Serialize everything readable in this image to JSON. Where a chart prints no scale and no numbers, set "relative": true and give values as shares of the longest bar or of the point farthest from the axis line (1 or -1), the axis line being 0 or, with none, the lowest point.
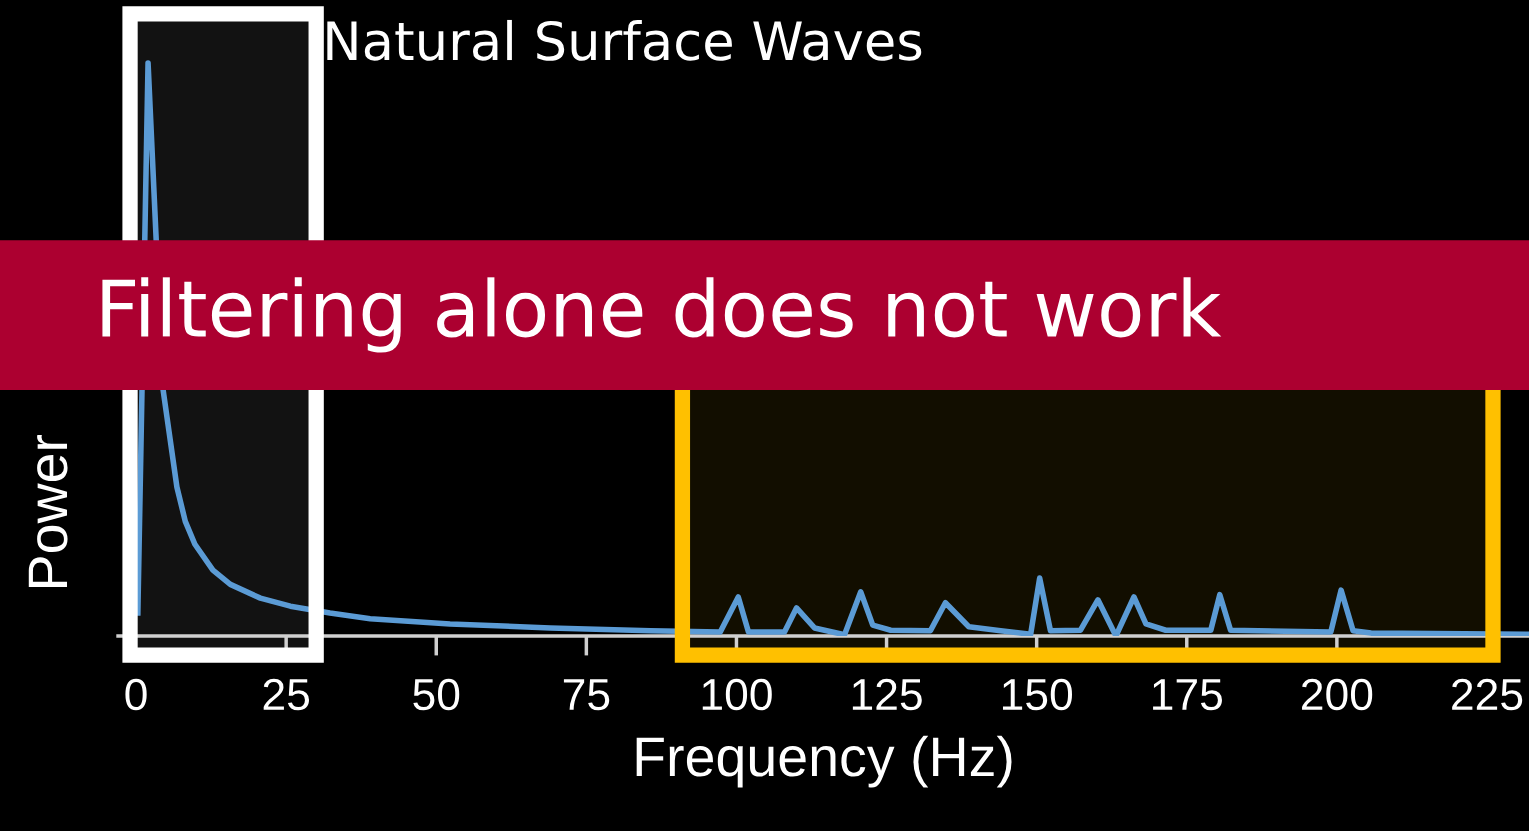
{
  "chart_data": {
    "type": "line",
    "relative": true,
    "xlabel": "Frequency (Hz)",
    "ylabel": "Power",
    "xlim": [
      -3,
      232
    ],
    "xticks": [
      0,
      25,
      50,
      75,
      100,
      125,
      150,
      175,
      200,
      225
    ],
    "grid": false,
    "legend": false,
    "marker": "none",
    "line_style": "solid",
    "annotations": [
      "Filtering alone does not work"
    ],
    "bands": [
      {
        "axis": "x",
        "from": -1,
        "to": 30,
        "label": "Natural Surface Waves",
        "color": "#ffffff"
      },
      {
        "axis": "x",
        "from": 91,
        "to": 226,
        "color": "#ffc000"
      }
    ],
    "series": [
      {
        "color": "#5b9bd5",
        "x": [
          0.3,
          2,
          4.5,
          6.8,
          8.2,
          9.8,
          12.8,
          15.7,
          20.7,
          25.7,
          32.3,
          39,
          52.3,
          69,
          85.7,
          97.3,
          100.3,
          102,
          108,
          110,
          113,
          118,
          120.7,
          122.7,
          125.7,
          132.3,
          134.8,
          138.7,
          144,
          149,
          150.5,
          152.3,
          157.3,
          160.2,
          163.2,
          166.2,
          168.2,
          171.5,
          179,
          180.5,
          182.3,
          199,
          200.7,
          202.7,
          205.7,
          232
        ],
        "values": [
          0.04,
          1.0,
          0.43,
          0.26,
          0.2,
          0.16,
          0.115,
          0.09,
          0.066,
          0.052,
          0.04,
          0.03,
          0.021,
          0.014,
          0.009,
          0.007,
          0.068,
          0.007,
          0.007,
          0.049,
          0.014,
          0.002,
          0.077,
          0.019,
          0.01,
          0.009,
          0.058,
          0.016,
          0.009,
          0.003,
          0.101,
          0.009,
          0.01,
          0.063,
          0.0,
          0.068,
          0.021,
          0.01,
          0.01,
          0.072,
          0.01,
          0.007,
          0.08,
          0.009,
          0.005,
          0.003
        ]
      }
    ]
  }
}
